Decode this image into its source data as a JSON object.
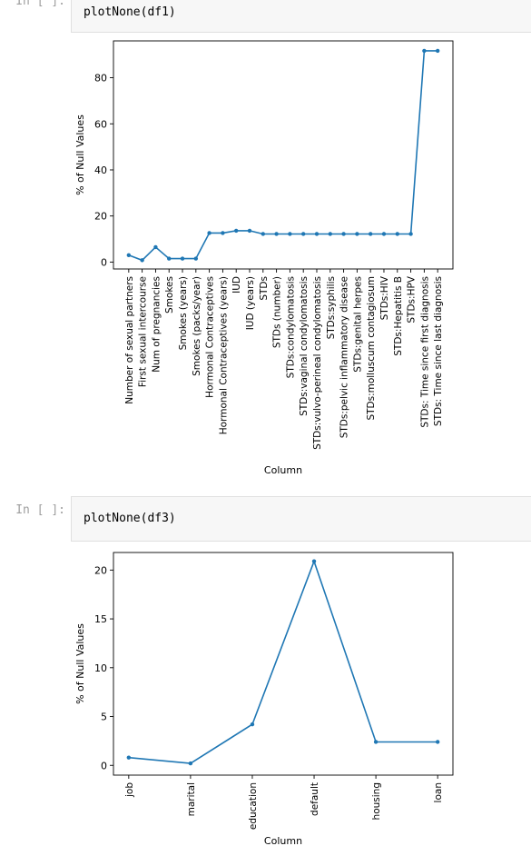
{
  "cells": [
    {
      "prompt": "In [ ]:",
      "code": "plotNone(df1)"
    },
    {
      "prompt": "In [ ]:",
      "code": "plotNone(df3)"
    }
  ],
  "chart_data": [
    {
      "type": "line",
      "title": "",
      "xlabel": "Column",
      "ylabel": "% of Null Values",
      "ylim": [
        -3,
        96
      ],
      "yticks": [
        0,
        20,
        40,
        60,
        80
      ],
      "grid": false,
      "legend": "none",
      "color": "#1f77b4",
      "categories": [
        "Number of sexual partners",
        "First sexual intercourse",
        "Num of pregnancies",
        "Smokes",
        "Smokes (years)",
        "Smokes (packs/year)",
        "Hormonal Contraceptives",
        "Hormonal Contraceptives (years)",
        "IUD",
        "IUD (years)",
        "STDs",
        "STDs (number)",
        "STDs:condylomatosis",
        "STDs:vaginal condylomatosis",
        "STDs:vulvo-perineal condylomatosis",
        "STDs:syphilis",
        "STDs:pelvic inflammatory disease",
        "STDs:genital herpes",
        "STDs:molluscum contagiosum",
        "STDs:HIV",
        "STDs:Hepatitis B",
        "STDs:HPV",
        "STDs: Time since first diagnosis",
        "STDs: Time since last diagnosis"
      ],
      "values": [
        3.0,
        0.8,
        6.5,
        1.5,
        1.5,
        1.5,
        12.6,
        12.6,
        13.6,
        13.6,
        12.2,
        12.2,
        12.2,
        12.2,
        12.2,
        12.2,
        12.2,
        12.2,
        12.2,
        12.2,
        12.2,
        12.2,
        91.7,
        91.7
      ]
    },
    {
      "type": "line",
      "title": "",
      "xlabel": "Column",
      "ylabel": "% of Null Values",
      "ylim": [
        -1,
        21.8
      ],
      "yticks": [
        0,
        5,
        10,
        15,
        20
      ],
      "grid": false,
      "legend": "none",
      "color": "#1f77b4",
      "categories": [
        "job",
        "marital",
        "education",
        "default",
        "housing",
        "loan"
      ],
      "values": [
        0.8,
        0.2,
        4.2,
        20.9,
        2.4,
        2.4
      ]
    }
  ]
}
